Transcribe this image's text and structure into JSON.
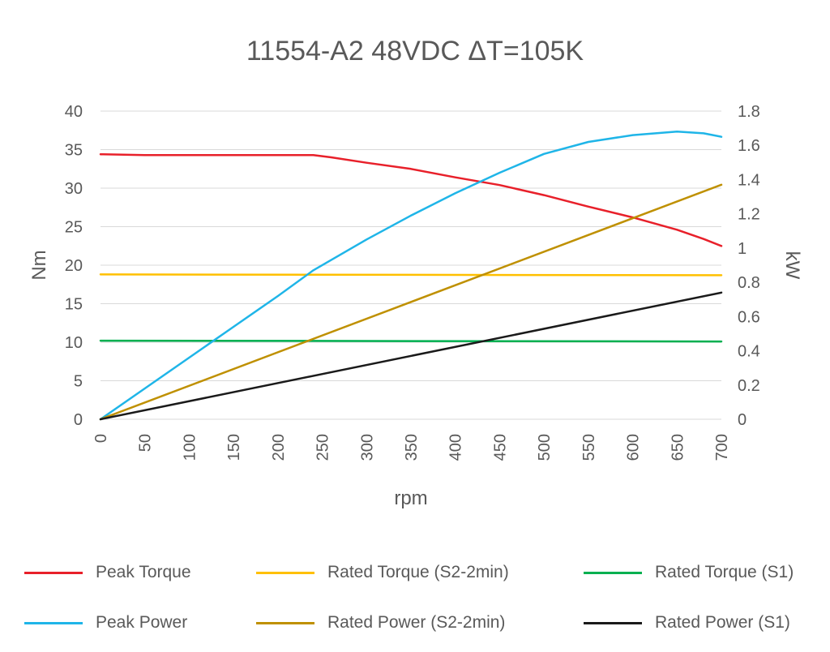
{
  "chart_data": {
    "type": "line",
    "title": "11554-A2 48VDC ΔT=105K",
    "xlabel": "rpm",
    "ylabel_left": "Nm",
    "ylabel_right": "kW",
    "xlim": [
      0,
      700
    ],
    "ylim_left": [
      0,
      40
    ],
    "ylim_right": [
      0,
      1.8
    ],
    "x_ticks": [
      "0",
      "50",
      "100",
      "150",
      "200",
      "250",
      "300",
      "350",
      "400",
      "450",
      "500",
      "550",
      "600",
      "650",
      "700"
    ],
    "y_ticks_left": [
      "0",
      "5",
      "10",
      "15",
      "20",
      "25",
      "30",
      "35",
      "40"
    ],
    "y_ticks_right": [
      "0",
      "0.2",
      "0.4",
      "0.6",
      "0.8",
      "1",
      "1.2",
      "1.4",
      "1.6",
      "1.8"
    ],
    "grid": true,
    "legend_position": "bottom",
    "series": [
      {
        "name": "Peak Torque",
        "axis": "left",
        "color": "#e8202a",
        "x": [
          0,
          50,
          100,
          150,
          200,
          240,
          260,
          300,
          350,
          400,
          450,
          500,
          550,
          600,
          650,
          680,
          700
        ],
        "y": [
          34.4,
          34.3,
          34.3,
          34.3,
          34.3,
          34.3,
          34.0,
          33.3,
          32.5,
          31.4,
          30.4,
          29.1,
          27.6,
          26.2,
          24.6,
          23.4,
          22.5
        ]
      },
      {
        "name": "Rated Torque (S2-2min)",
        "axis": "left",
        "color": "#ffc000",
        "x": [
          0,
          700
        ],
        "y": [
          18.8,
          18.7
        ]
      },
      {
        "name": "Rated Torque (S1)",
        "axis": "left",
        "color": "#00b050",
        "x": [
          0,
          700
        ],
        "y": [
          10.2,
          10.1
        ]
      },
      {
        "name": "Peak Power",
        "axis": "right",
        "color": "#1fb5e8",
        "x": [
          0,
          50,
          100,
          150,
          200,
          240,
          300,
          350,
          400,
          450,
          500,
          550,
          600,
          650,
          680,
          700
        ],
        "y": [
          0,
          0.18,
          0.36,
          0.54,
          0.72,
          0.87,
          1.05,
          1.19,
          1.32,
          1.44,
          1.55,
          1.62,
          1.66,
          1.68,
          1.67,
          1.65
        ]
      },
      {
        "name": "Rated Power (S2-2min)",
        "axis": "right",
        "color": "#bf9000",
        "x": [
          0,
          700
        ],
        "y": [
          0,
          1.37
        ]
      },
      {
        "name": "Rated Power (S1)",
        "axis": "right",
        "color": "#1a1a1a",
        "x": [
          0,
          700
        ],
        "y": [
          0,
          0.74
        ]
      }
    ]
  }
}
